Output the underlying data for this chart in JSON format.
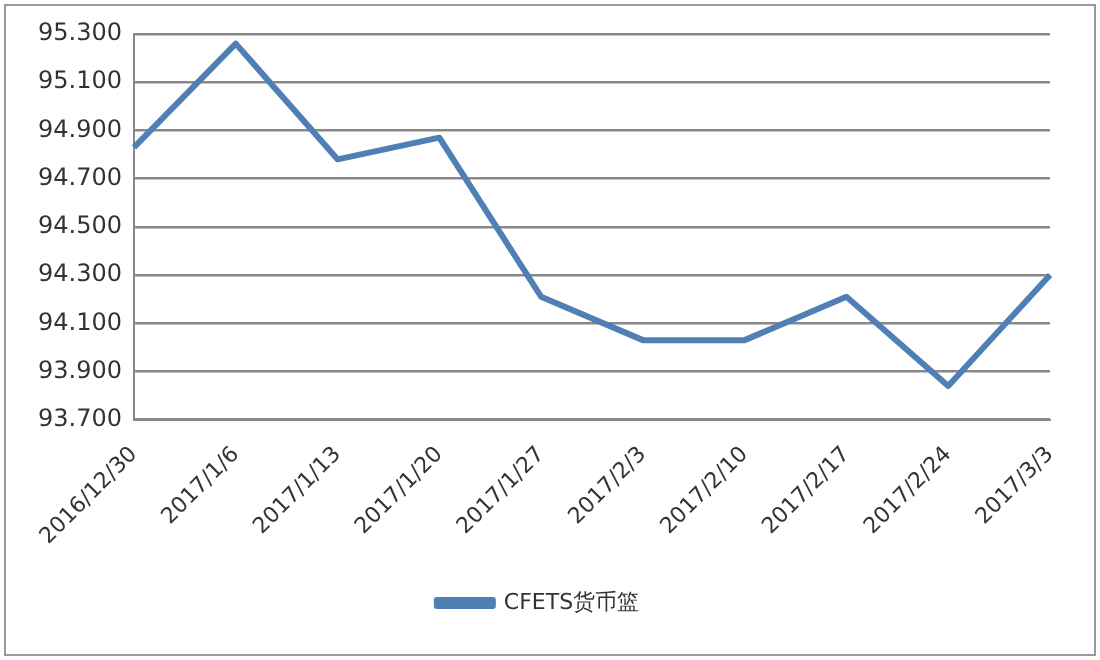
{
  "chart_data": {
    "type": "line",
    "categories": [
      "2016/12/30",
      "2017/1/6",
      "2017/1/13",
      "2017/1/20",
      "2017/1/27",
      "2017/2/3",
      "2017/2/10",
      "2017/2/17",
      "2017/2/24",
      "2017/3/3"
    ],
    "series": [
      {
        "name": "CFETS货币篮",
        "color": "#4f7fb5",
        "values": [
          94.83,
          95.26,
          94.78,
          94.87,
          94.21,
          94.03,
          94.03,
          94.21,
          93.84,
          94.3
        ]
      }
    ],
    "ylim": [
      93.7,
      95.3
    ],
    "yticks": [
      {
        "value": 93.7,
        "label": "93.700"
      },
      {
        "value": 93.9,
        "label": "93.900"
      },
      {
        "value": 94.1,
        "label": "94.100"
      },
      {
        "value": 94.3,
        "label": "94.300"
      },
      {
        "value": 94.5,
        "label": "94.500"
      },
      {
        "value": 94.7,
        "label": "94.700"
      },
      {
        "value": 94.9,
        "label": "94.900"
      },
      {
        "value": 95.1,
        "label": "95.100"
      },
      {
        "value": 95.3,
        "label": "95.300"
      }
    ],
    "grid": "y",
    "legend": "bottom",
    "marker": "none",
    "line_style": "solid"
  }
}
